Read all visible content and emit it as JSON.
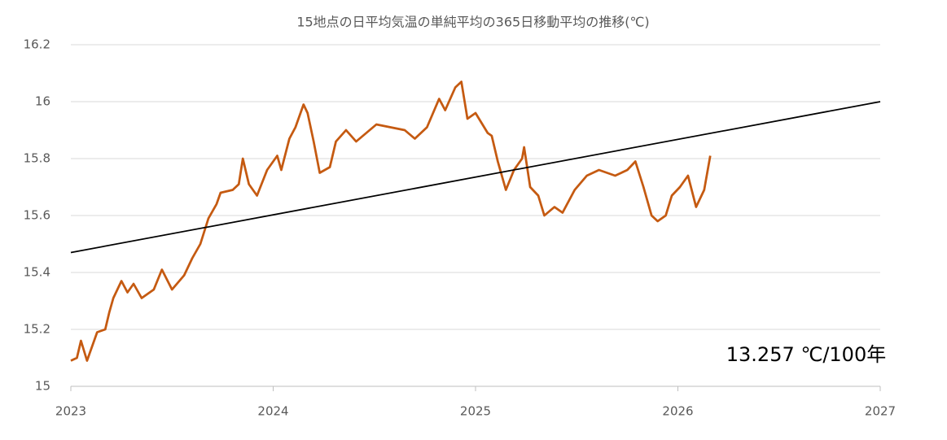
{
  "chart_data": {
    "type": "line",
    "title": "15地点の日平均気温の単純平均の365日移動平均の推移(℃)",
    "annotation": "13.257 ℃/100年",
    "xlim": [
      2023,
      2027
    ],
    "xticks": [
      2023,
      2024,
      2025,
      2026,
      2027
    ],
    "ylim": [
      15,
      16.2
    ],
    "yticks": [
      15,
      15.2,
      15.4,
      15.6,
      15.8,
      16,
      16.2
    ],
    "grid": true,
    "series": [
      {
        "color": "#c55a11",
        "x": [
          2023.0,
          2023.03,
          2023.05,
          2023.08,
          2023.1,
          2023.13,
          2023.17,
          2023.19,
          2023.21,
          2023.25,
          2023.28,
          2023.31,
          2023.35,
          2023.41,
          2023.45,
          2023.5,
          2023.56,
          2023.6,
          2023.64,
          2023.68,
          2023.72,
          2023.74,
          2023.8,
          2023.83,
          2023.85,
          2023.88,
          2023.92,
          2023.97,
          2024.02,
          2024.04,
          2024.08,
          2024.11,
          2024.15,
          2024.17,
          2024.2,
          2024.23,
          2024.28,
          2024.31,
          2024.36,
          2024.41,
          2024.46,
          2024.51,
          2024.58,
          2024.65,
          2024.7,
          2024.76,
          2024.82,
          2024.85,
          2024.9,
          2024.93,
          2024.96,
          2025.0,
          2025.06,
          2025.08,
          2025.11,
          2025.15,
          2025.19,
          2025.23,
          2025.24,
          2025.27,
          2025.31,
          2025.34,
          2025.39,
          2025.43,
          2025.49,
          2025.55,
          2025.61,
          2025.69,
          2025.75,
          2025.79,
          2025.83,
          2025.87,
          2025.9,
          2025.94,
          2025.97,
          2026.01,
          2026.05,
          2026.09,
          2026.13,
          2026.16
        ],
        "values": [
          15.09,
          15.1,
          15.16,
          15.09,
          15.13,
          15.19,
          15.2,
          15.26,
          15.31,
          15.37,
          15.33,
          15.36,
          15.31,
          15.34,
          15.41,
          15.34,
          15.39,
          15.45,
          15.5,
          15.59,
          15.64,
          15.68,
          15.69,
          15.71,
          15.8,
          15.71,
          15.67,
          15.76,
          15.81,
          15.76,
          15.87,
          15.91,
          15.99,
          15.96,
          15.86,
          15.75,
          15.77,
          15.86,
          15.9,
          15.86,
          15.89,
          15.92,
          15.91,
          15.9,
          15.87,
          15.91,
          16.01,
          15.97,
          16.05,
          16.07,
          15.94,
          15.96,
          15.89,
          15.88,
          15.79,
          15.69,
          15.76,
          15.8,
          15.84,
          15.7,
          15.67,
          15.6,
          15.63,
          15.61,
          15.69,
          15.74,
          15.76,
          15.74,
          15.76,
          15.79,
          15.7,
          15.6,
          15.58,
          15.6,
          15.67,
          15.7,
          15.74,
          15.63,
          15.69,
          15.81
        ]
      },
      {
        "color": "#000000",
        "x": [
          2023,
          2027
        ],
        "values": [
          15.47,
          16.0
        ]
      }
    ]
  }
}
